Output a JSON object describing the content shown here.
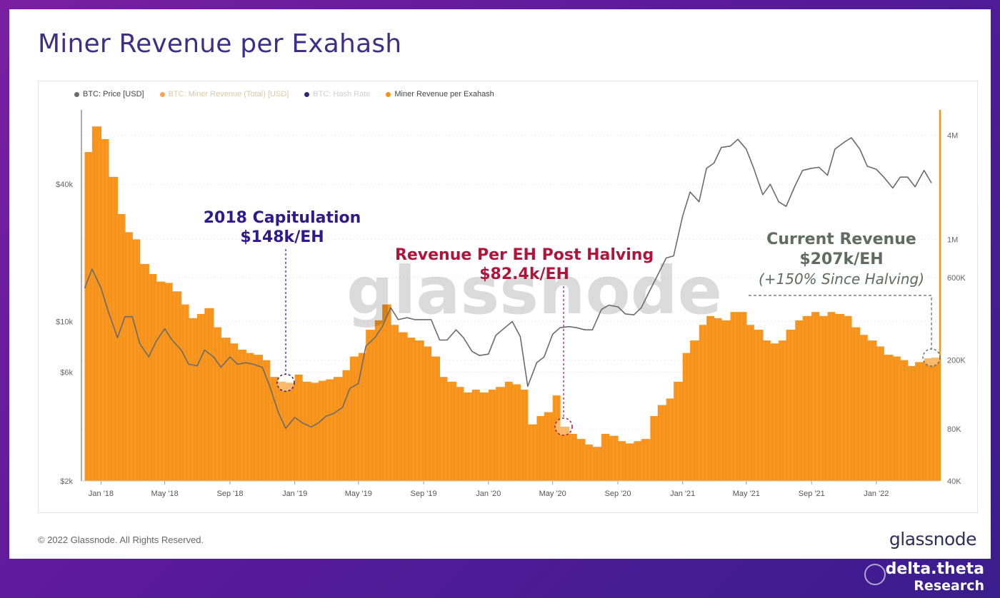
{
  "title": "Miner Revenue per Exahash",
  "legend": [
    {
      "label": "BTC: Price [USD]",
      "color": "#6b6b6b",
      "state": "on"
    },
    {
      "label": "BTC: Miner Revenue (Total) [USD]",
      "color": "#f7a55a",
      "state": "dim"
    },
    {
      "label": "BTC: Hash Rate",
      "color": "#2e2a74",
      "state": "dim2"
    },
    {
      "label": "Miner Revenue per Exahash",
      "color": "#f7931a",
      "state": "on"
    }
  ],
  "watermark": "glassnode",
  "footer": {
    "copyright": "© 2022 Glassnode. All Rights Reserved.",
    "logo": "glassnode",
    "brand_line1": "delta.theta",
    "brand_line2": "Research"
  },
  "colors": {
    "bar": "#f7931a",
    "price": "#6b6b6b",
    "ann_purple": "#2e1a8c",
    "ann_red": "#b0143a",
    "ann_gray": "#5f6b63"
  },
  "chart_data": {
    "type": "bar",
    "x_ticks": [
      "Jan '18",
      "May '18",
      "Sep '18",
      "Jan '19",
      "May '19",
      "Sep '19",
      "Jan '20",
      "May '20",
      "Sep '20",
      "Jan '21",
      "May '21",
      "Sep '21",
      "Jan '22"
    ],
    "y_left_ticks": [
      "$40k",
      "$10k",
      "$6k",
      "$2k"
    ],
    "y_right_ticks": [
      "4M",
      "1M",
      "600K",
      "200K",
      "80K",
      "40K"
    ],
    "y_left_scale": "log",
    "y_right_scale": "log",
    "series": [
      {
        "name": "Miner Revenue per Exahash",
        "type": "bar",
        "axis": "right",
        "points": [
          [
            "2017-12-01",
            3200000
          ],
          [
            "2017-12-15",
            4500000
          ],
          [
            "2018-01-01",
            3800000
          ],
          [
            "2018-01-15",
            2300000
          ],
          [
            "2018-02-01",
            1400000
          ],
          [
            "2018-02-15",
            1100000
          ],
          [
            "2018-03-01",
            1000000
          ],
          [
            "2018-03-15",
            720000
          ],
          [
            "2018-04-01",
            630000
          ],
          [
            "2018-04-15",
            570000
          ],
          [
            "2018-05-01",
            560000
          ],
          [
            "2018-05-15",
            500000
          ],
          [
            "2018-06-01",
            420000
          ],
          [
            "2018-06-15",
            350000
          ],
          [
            "2018-07-01",
            370000
          ],
          [
            "2018-07-15",
            400000
          ],
          [
            "2018-08-01",
            310000
          ],
          [
            "2018-08-15",
            270000
          ],
          [
            "2018-09-01",
            250000
          ],
          [
            "2018-09-15",
            230000
          ],
          [
            "2018-10-01",
            220000
          ],
          [
            "2018-10-15",
            215000
          ],
          [
            "2018-11-01",
            200000
          ],
          [
            "2018-11-15",
            160000
          ],
          [
            "2018-12-01",
            150000
          ],
          [
            "2018-12-15",
            148000
          ],
          [
            "2019-01-01",
            165000
          ],
          [
            "2019-01-15",
            150000
          ],
          [
            "2019-02-01",
            148000
          ],
          [
            "2019-02-15",
            152000
          ],
          [
            "2019-03-01",
            155000
          ],
          [
            "2019-03-15",
            160000
          ],
          [
            "2019-04-01",
            175000
          ],
          [
            "2019-04-15",
            210000
          ],
          [
            "2019-05-01",
            220000
          ],
          [
            "2019-05-15",
            300000
          ],
          [
            "2019-06-01",
            340000
          ],
          [
            "2019-06-15",
            420000
          ],
          [
            "2019-07-01",
            320000
          ],
          [
            "2019-07-15",
            290000
          ],
          [
            "2019-08-01",
            270000
          ],
          [
            "2019-08-15",
            260000
          ],
          [
            "2019-09-01",
            240000
          ],
          [
            "2019-09-15",
            210000
          ],
          [
            "2019-10-01",
            160000
          ],
          [
            "2019-10-15",
            150000
          ],
          [
            "2019-11-01",
            140000
          ],
          [
            "2019-11-15",
            130000
          ],
          [
            "2019-12-01",
            135000
          ],
          [
            "2019-12-15",
            130000
          ],
          [
            "2020-01-01",
            135000
          ],
          [
            "2020-01-15",
            140000
          ],
          [
            "2020-02-01",
            150000
          ],
          [
            "2020-02-15",
            145000
          ],
          [
            "2020-03-01",
            135000
          ],
          [
            "2020-03-15",
            85000
          ],
          [
            "2020-04-01",
            95000
          ],
          [
            "2020-04-15",
            100000
          ],
          [
            "2020-05-01",
            125000
          ],
          [
            "2020-05-15",
            82400
          ],
          [
            "2020-06-01",
            75000
          ],
          [
            "2020-06-15",
            70000
          ],
          [
            "2020-07-01",
            65000
          ],
          [
            "2020-07-15",
            63000
          ],
          [
            "2020-08-01",
            75000
          ],
          [
            "2020-08-15",
            73000
          ],
          [
            "2020-09-01",
            68000
          ],
          [
            "2020-09-15",
            66000
          ],
          [
            "2020-10-01",
            68000
          ],
          [
            "2020-10-15",
            70000
          ],
          [
            "2020-11-01",
            95000
          ],
          [
            "2020-11-15",
            110000
          ],
          [
            "2020-12-01",
            120000
          ],
          [
            "2020-12-15",
            150000
          ],
          [
            "2021-01-01",
            220000
          ],
          [
            "2021-01-15",
            260000
          ],
          [
            "2021-02-01",
            320000
          ],
          [
            "2021-02-15",
            360000
          ],
          [
            "2021-03-01",
            350000
          ],
          [
            "2021-03-15",
            340000
          ],
          [
            "2021-04-01",
            380000
          ],
          [
            "2021-04-15",
            380000
          ],
          [
            "2021-05-01",
            320000
          ],
          [
            "2021-05-15",
            300000
          ],
          [
            "2021-06-01",
            260000
          ],
          [
            "2021-06-15",
            250000
          ],
          [
            "2021-07-01",
            260000
          ],
          [
            "2021-07-15",
            300000
          ],
          [
            "2021-08-01",
            340000
          ],
          [
            "2021-08-15",
            360000
          ],
          [
            "2021-09-01",
            380000
          ],
          [
            "2021-09-15",
            360000
          ],
          [
            "2021-10-01",
            380000
          ],
          [
            "2021-10-15",
            370000
          ],
          [
            "2021-11-01",
            360000
          ],
          [
            "2021-11-15",
            310000
          ],
          [
            "2021-12-01",
            280000
          ],
          [
            "2021-12-15",
            260000
          ],
          [
            "2022-01-01",
            240000
          ],
          [
            "2022-01-15",
            215000
          ],
          [
            "2022-02-01",
            210000
          ],
          [
            "2022-02-15",
            200000
          ],
          [
            "2022-03-01",
            185000
          ],
          [
            "2022-03-15",
            195000
          ],
          [
            "2022-04-01",
            205000
          ],
          [
            "2022-04-15",
            207000
          ]
        ]
      },
      {
        "name": "BTC: Price [USD]",
        "type": "line",
        "axis": "left",
        "points": [
          [
            "2017-12-01",
            14000
          ],
          [
            "2017-12-15",
            17000
          ],
          [
            "2018-01-01",
            14000
          ],
          [
            "2018-01-15",
            11000
          ],
          [
            "2018-02-01",
            8500
          ],
          [
            "2018-02-15",
            10500
          ],
          [
            "2018-03-01",
            10500
          ],
          [
            "2018-03-15",
            8000
          ],
          [
            "2018-04-01",
            7000
          ],
          [
            "2018-04-15",
            8200
          ],
          [
            "2018-05-01",
            9300
          ],
          [
            "2018-05-15",
            8300
          ],
          [
            "2018-06-01",
            7500
          ],
          [
            "2018-06-15",
            6500
          ],
          [
            "2018-07-01",
            6400
          ],
          [
            "2018-07-15",
            7500
          ],
          [
            "2018-08-01",
            7000
          ],
          [
            "2018-08-15",
            6300
          ],
          [
            "2018-09-01",
            7000
          ],
          [
            "2018-09-15",
            6500
          ],
          [
            "2018-10-01",
            6600
          ],
          [
            "2018-10-15",
            6500
          ],
          [
            "2018-11-01",
            6300
          ],
          [
            "2018-11-15",
            5200
          ],
          [
            "2018-12-01",
            4000
          ],
          [
            "2018-12-15",
            3400
          ],
          [
            "2019-01-01",
            3800
          ],
          [
            "2019-01-15",
            3600
          ],
          [
            "2019-02-01",
            3450
          ],
          [
            "2019-02-15",
            3600
          ],
          [
            "2019-03-01",
            3850
          ],
          [
            "2019-03-15",
            3950
          ],
          [
            "2019-04-01",
            4200
          ],
          [
            "2019-04-15",
            5100
          ],
          [
            "2019-05-01",
            5350
          ],
          [
            "2019-05-15",
            7800
          ],
          [
            "2019-06-01",
            8500
          ],
          [
            "2019-06-15",
            9500
          ],
          [
            "2019-07-01",
            11500
          ],
          [
            "2019-07-15",
            10200
          ],
          [
            "2019-08-01",
            10400
          ],
          [
            "2019-08-15",
            10200
          ],
          [
            "2019-09-01",
            10200
          ],
          [
            "2019-09-15",
            10200
          ],
          [
            "2019-10-01",
            8300
          ],
          [
            "2019-10-15",
            8300
          ],
          [
            "2019-11-01",
            9200
          ],
          [
            "2019-11-15",
            8500
          ],
          [
            "2019-12-01",
            7400
          ],
          [
            "2019-12-15",
            7100
          ],
          [
            "2020-01-01",
            7200
          ],
          [
            "2020-01-15",
            8700
          ],
          [
            "2020-02-01",
            9400
          ],
          [
            "2020-02-15",
            10000
          ],
          [
            "2020-03-01",
            8600
          ],
          [
            "2020-03-15",
            5200
          ],
          [
            "2020-04-01",
            6600
          ],
          [
            "2020-04-15",
            7000
          ],
          [
            "2020-05-01",
            8800
          ],
          [
            "2020-05-15",
            9400
          ],
          [
            "2020-06-01",
            9500
          ],
          [
            "2020-06-15",
            9400
          ],
          [
            "2020-07-01",
            9200
          ],
          [
            "2020-07-15",
            9200
          ],
          [
            "2020-08-01",
            11300
          ],
          [
            "2020-08-15",
            11800
          ],
          [
            "2020-09-01",
            11600
          ],
          [
            "2020-09-15",
            10800
          ],
          [
            "2020-10-01",
            10700
          ],
          [
            "2020-10-15",
            11500
          ],
          [
            "2020-11-01",
            13800
          ],
          [
            "2020-11-15",
            16000
          ],
          [
            "2020-12-01",
            19000
          ],
          [
            "2020-12-15",
            19400
          ],
          [
            "2021-01-01",
            29000
          ],
          [
            "2021-01-15",
            37000
          ],
          [
            "2021-02-01",
            33500
          ],
          [
            "2021-02-15",
            47000
          ],
          [
            "2021-03-01",
            49500
          ],
          [
            "2021-03-15",
            58000
          ],
          [
            "2021-04-01",
            58800
          ],
          [
            "2021-04-15",
            63000
          ],
          [
            "2021-05-01",
            57000
          ],
          [
            "2021-05-15",
            47000
          ],
          [
            "2021-06-01",
            36000
          ],
          [
            "2021-06-15",
            40000
          ],
          [
            "2021-07-01",
            33500
          ],
          [
            "2021-07-15",
            32000
          ],
          [
            "2021-08-01",
            39500
          ],
          [
            "2021-08-15",
            46000
          ],
          [
            "2021-09-01",
            47000
          ],
          [
            "2021-09-15",
            47500
          ],
          [
            "2021-10-01",
            43800
          ],
          [
            "2021-10-15",
            57000
          ],
          [
            "2021-11-01",
            61000
          ],
          [
            "2021-11-15",
            64000
          ],
          [
            "2021-12-01",
            57000
          ],
          [
            "2021-12-15",
            48000
          ],
          [
            "2022-01-01",
            46500
          ],
          [
            "2022-01-15",
            43000
          ],
          [
            "2022-02-01",
            38500
          ],
          [
            "2022-02-15",
            43000
          ],
          [
            "2022-03-01",
            43000
          ],
          [
            "2022-03-15",
            39000
          ],
          [
            "2022-04-01",
            46000
          ],
          [
            "2022-04-15",
            40500
          ]
        ]
      }
    ],
    "annotations": [
      {
        "line1": "2018 Capitulation",
        "line2": "$148k/EH",
        "date": "2018-12-15",
        "value": 148000
      },
      {
        "line1": "Revenue Per EH Post Halving",
        "line2": "$82.4k/EH",
        "date": "2020-05-15",
        "value": 82400
      },
      {
        "line1": "Current Revenue",
        "line2": "$207k/EH",
        "line3": "(+150% Since Halving)",
        "date": "2022-04-15",
        "value": 207000
      }
    ]
  }
}
